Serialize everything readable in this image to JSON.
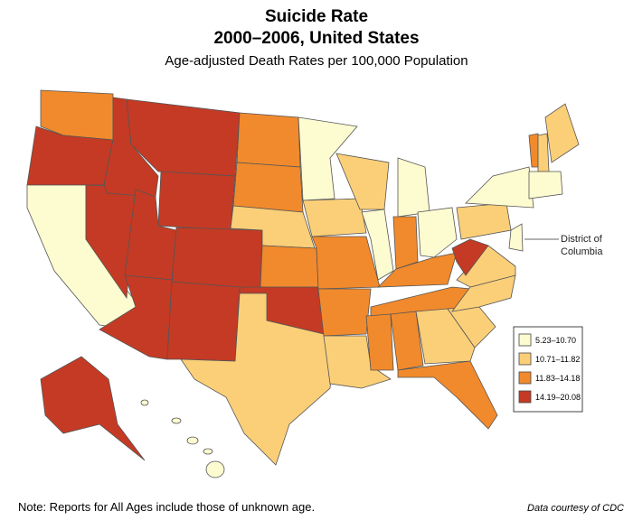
{
  "title": "Suicide Rate",
  "subtitle": "2000–2006, United States",
  "description": "Age-adjusted Death Rates per 100,000 Population",
  "legend": {
    "items": [
      {
        "label": "5.23–10.70",
        "color": "#fdfbd0"
      },
      {
        "label": "10.71–11.82",
        "color": "#fbcf78"
      },
      {
        "label": "11.83–14.18",
        "color": "#f18a2c"
      },
      {
        "label": "14.19–20.08",
        "color": "#c53a24"
      }
    ]
  },
  "annotation": "District of Columbia",
  "note": "Note: Reports for All Ages include those of unknown age.",
  "source": "Data courtesy of CDC"
}
